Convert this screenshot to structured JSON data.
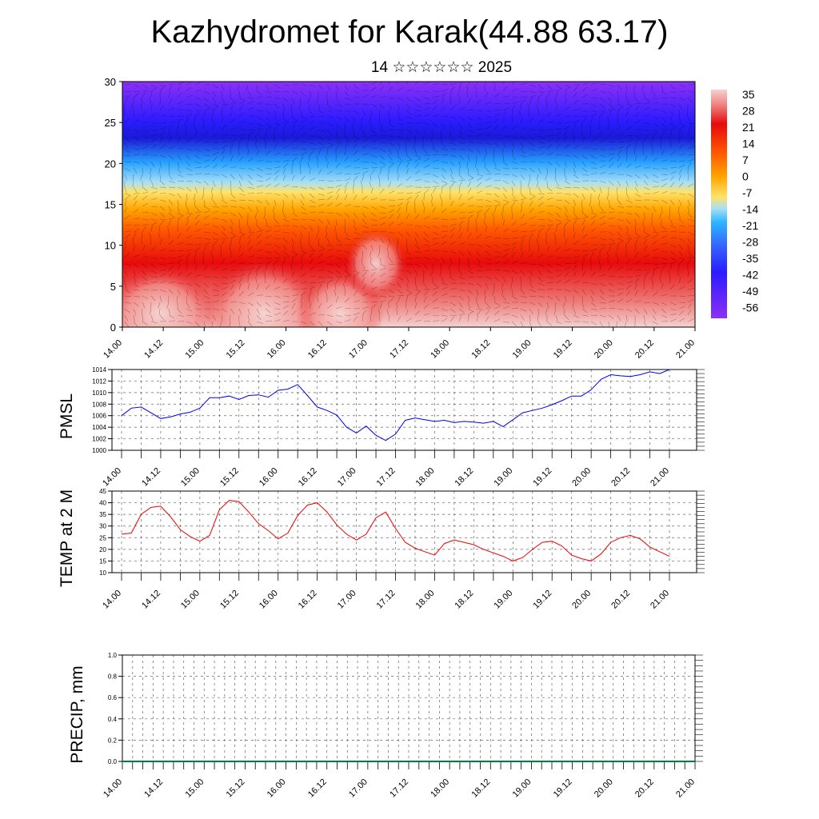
{
  "title": "Kazhydromet for Karak(44.88 63.17)",
  "subtitle": "14 ☆☆☆☆☆☆ 2025",
  "colorbar_labels": [
    "35",
    "28",
    "21",
    "14",
    "7",
    "0",
    "-7",
    "-14",
    "-21",
    "-28",
    "-35",
    "-42",
    "-49",
    "-56"
  ],
  "colors": {
    "pmsl_line": "#0000ee",
    "temp_line": "#ee0000",
    "precip_line": "#008040"
  },
  "chart_data": [
    {
      "type": "heatmap",
      "ylabel": "",
      "ylim": [
        0,
        30
      ],
      "yticks": [
        "0",
        "5",
        "10",
        "15",
        "20",
        "25",
        "30"
      ],
      "x_ticks": [
        "14.00",
        "14.12",
        "15.00",
        "15.12",
        "16.00",
        "16.12",
        "17.00",
        "17.12",
        "18.00",
        "18.12",
        "19.00",
        "19.12",
        "20.00",
        "20.12",
        "21.00"
      ],
      "color_scale": {
        "min": -56,
        "max": 35,
        "legend": "right"
      }
    },
    {
      "type": "line",
      "ylabel": "PMSL",
      "ylim": [
        1000,
        1014
      ],
      "yticks": [
        "1000",
        "1002",
        "1004",
        "1006",
        "1008",
        "1010",
        "1012",
        "1014"
      ],
      "x_ticks": [
        "14.00",
        "14.12",
        "15.00",
        "15.12",
        "16.00",
        "16.12",
        "17.00",
        "17.12",
        "18.00",
        "18.12",
        "19.00",
        "19.12",
        "20.00",
        "20.12",
        "21.00"
      ],
      "grid": true,
      "x_hours": [
        0,
        3,
        6,
        9,
        12,
        15,
        18,
        21,
        24,
        27,
        30,
        33,
        36,
        39,
        42,
        45,
        48,
        51,
        54,
        57,
        60,
        63,
        66,
        69,
        72,
        75,
        78,
        81,
        84,
        87,
        90,
        93,
        96,
        99,
        102,
        105,
        108,
        111,
        114,
        117,
        120,
        123,
        126,
        129,
        132,
        135,
        138,
        141,
        144,
        147,
        150,
        153,
        156,
        159,
        162,
        165,
        168
      ],
      "values": [
        1006.0,
        1007.3,
        1007.5,
        1006.5,
        1005.5,
        1005.8,
        1006.3,
        1006.6,
        1007.3,
        1009.1,
        1009.1,
        1009.4,
        1008.8,
        1009.5,
        1009.6,
        1009.2,
        1010.4,
        1010.6,
        1011.4,
        1009.5,
        1007.5,
        1006.9,
        1006.1,
        1004.0,
        1003.0,
        1004.2,
        1002.6,
        1001.7,
        1002.8,
        1005.2,
        1005.6,
        1005.3,
        1005.0,
        1005.2,
        1004.8,
        1005.0,
        1004.9,
        1004.7,
        1005.0,
        1004.1,
        1005.3,
        1006.5,
        1006.9,
        1007.3,
        1007.9,
        1008.6,
        1009.4,
        1009.4,
        1010.5,
        1012.3,
        1013.1,
        1012.9,
        1012.8,
        1013.1,
        1013.6,
        1013.3,
        1014.0
      ]
    },
    {
      "type": "line",
      "ylabel": "TEMP at 2 M",
      "ylim": [
        10,
        45
      ],
      "yticks": [
        "10",
        "15",
        "20",
        "25",
        "30",
        "35",
        "40",
        "45"
      ],
      "x_ticks": [
        "14.00",
        "14.12",
        "15.00",
        "15.12",
        "16.00",
        "16.12",
        "17.00",
        "17.12",
        "18.00",
        "18.12",
        "19.00",
        "19.12",
        "20.00",
        "20.12",
        "21.00"
      ],
      "grid": true,
      "x_hours": [
        0,
        3,
        6,
        9,
        12,
        15,
        18,
        21,
        24,
        27,
        30,
        33,
        36,
        39,
        42,
        45,
        48,
        51,
        54,
        57,
        60,
        63,
        66,
        69,
        72,
        75,
        78,
        81,
        84,
        87,
        90,
        93,
        96,
        99,
        102,
        105,
        108,
        111,
        114,
        117,
        120,
        123,
        126,
        129,
        132,
        135,
        138,
        141,
        144,
        147,
        150,
        153,
        156,
        159,
        162,
        165,
        168
      ],
      "values": [
        26.5,
        27.0,
        35.0,
        38.0,
        38.5,
        34.0,
        28.5,
        25.5,
        23.5,
        26.0,
        37.0,
        41.0,
        40.5,
        36.0,
        31.0,
        28.0,
        24.5,
        27.0,
        34.5,
        39.0,
        40.0,
        36.0,
        30.5,
        26.5,
        24.0,
        26.5,
        33.5,
        36.0,
        29.0,
        23.0,
        20.5,
        19.0,
        17.5,
        22.5,
        24.0,
        23.0,
        22.0,
        20.0,
        18.5,
        17.0,
        15.0,
        16.5,
        20.0,
        23.0,
        23.5,
        21.5,
        17.5,
        16.0,
        15.0,
        18.0,
        23.0,
        25.0,
        26.0,
        24.5,
        21.0,
        19.0,
        17.0
      ]
    },
    {
      "type": "line",
      "ylabel": "PRECIP, mm",
      "ylim": [
        0.0,
        1.0
      ],
      "yticks": [
        "0.0",
        "0.2",
        "0.4",
        "0.6",
        "0.8",
        "1.0"
      ],
      "x_ticks": [
        "14.00",
        "14.12",
        "15.00",
        "15.12",
        "16.00",
        "16.12",
        "17.00",
        "17.12",
        "18.00",
        "18.12",
        "19.00",
        "19.12",
        "20.00",
        "20.12",
        "21.00"
      ],
      "grid": true,
      "values": [
        0,
        0
      ]
    }
  ]
}
